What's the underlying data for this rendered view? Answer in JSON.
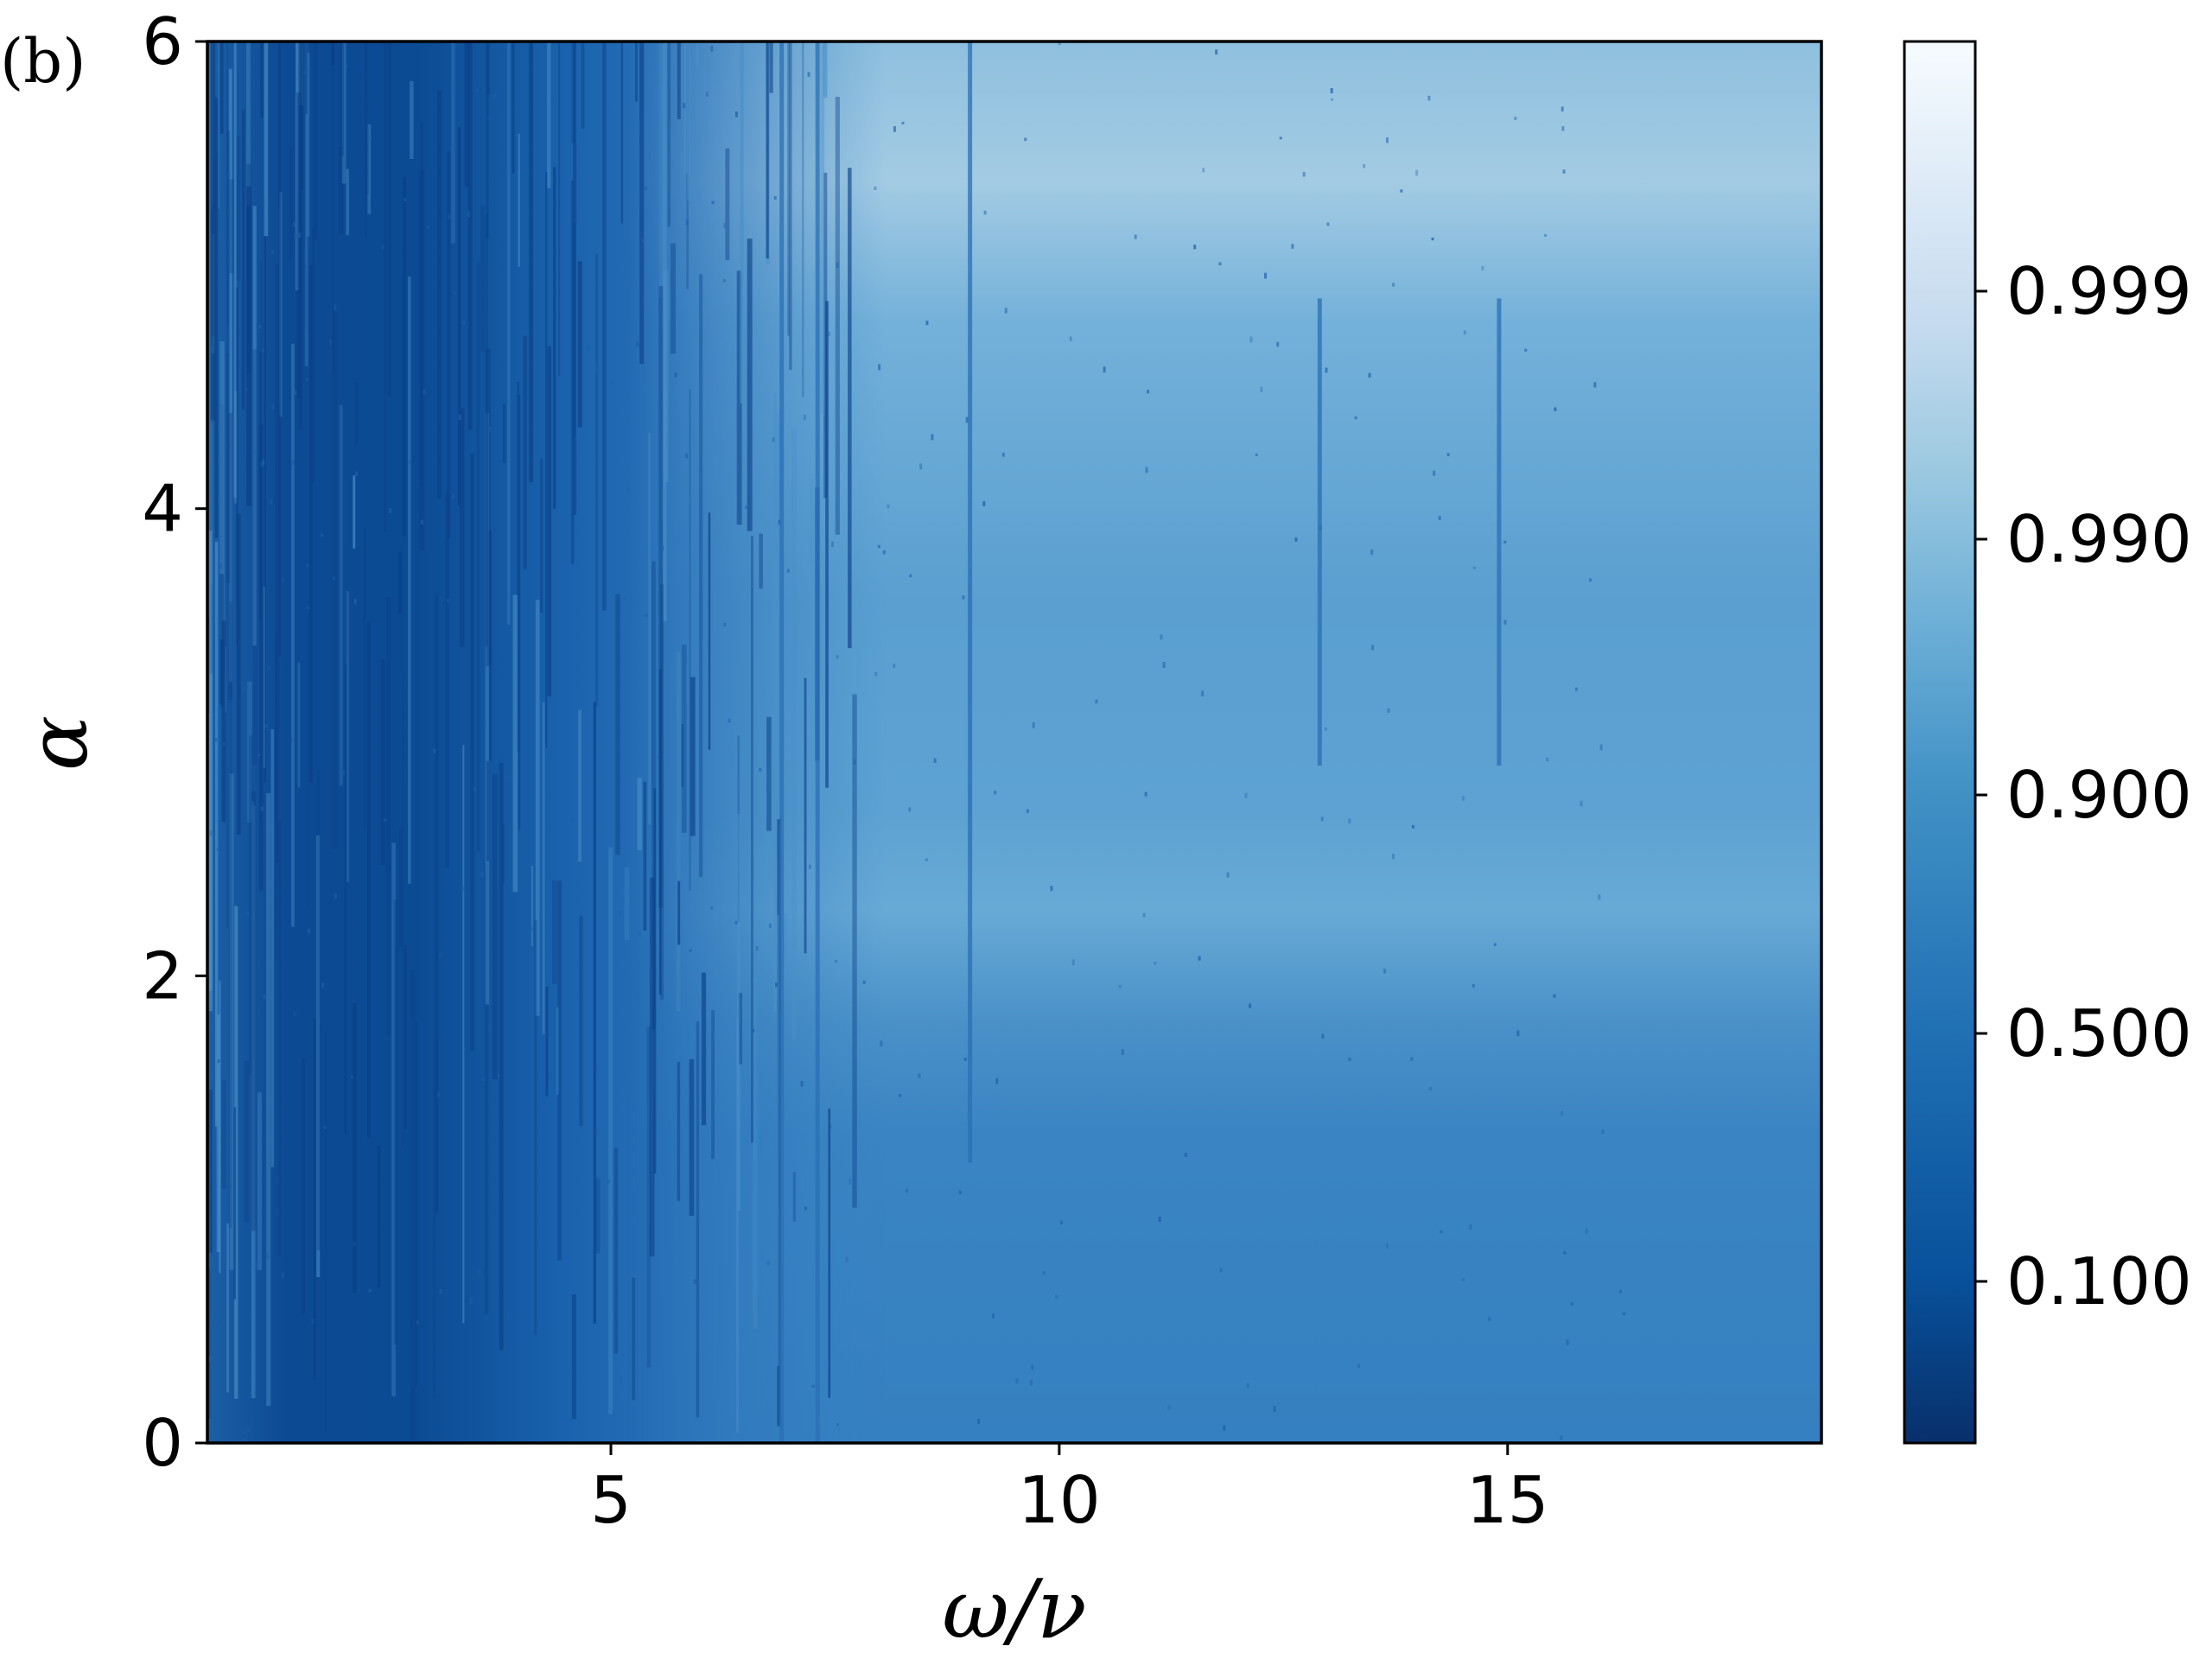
{
  "chart_data": {
    "type": "heatmap",
    "panel_label": "(b)",
    "xlabel": "ω/ν",
    "ylabel": "α",
    "xlim": [
      0.5,
      18.5
    ],
    "ylim": [
      0,
      6
    ],
    "x_ticks": [
      {
        "value": 5,
        "label": "5"
      },
      {
        "value": 10,
        "label": "10"
      },
      {
        "value": 15,
        "label": "15"
      }
    ],
    "y_ticks": [
      {
        "value": 0,
        "label": "0"
      },
      {
        "value": 2,
        "label": "2"
      },
      {
        "value": 4,
        "label": "4"
      },
      {
        "value": 6,
        "label": "6"
      }
    ],
    "colorbar": {
      "colormap": "Blues_r",
      "scale": "nonlinear",
      "ticks": [
        {
          "value": 0.1,
          "label": "0.100"
        },
        {
          "value": 0.5,
          "label": "0.500"
        },
        {
          "value": 0.9,
          "label": "0.900"
        },
        {
          "value": 0.99,
          "label": "0.990"
        },
        {
          "value": 0.999,
          "label": "0.999"
        }
      ],
      "colors": [
        "#08306b",
        "#08519c",
        "#2171b5",
        "#4292c6",
        "#6baed6",
        "#9ecae1",
        "#c6dbef",
        "#deebf7",
        "#f7fbff"
      ]
    },
    "regions": [
      {
        "omega_range": [
          0.5,
          4
        ],
        "alpha_range": [
          0,
          6
        ],
        "approx_value": 0.15
      },
      {
        "omega_range": [
          4,
          7.5
        ],
        "alpha_range": [
          0,
          6
        ],
        "approx_value": 0.4
      },
      {
        "omega_range": [
          7.5,
          18.5
        ],
        "alpha_range": [
          0,
          1.8
        ],
        "approx_value": 0.55
      },
      {
        "omega_range": [
          7.5,
          18.5
        ],
        "alpha_range": [
          1.8,
          5
        ],
        "approx_value": 0.85
      },
      {
        "omega_range": [
          10,
          18.5
        ],
        "alpha_range": [
          5,
          6
        ],
        "approx_value": 0.99
      }
    ],
    "resonance_lines_omega": [
      6.9,
      7.3,
      9.0,
      12.9,
      14.9
    ]
  }
}
